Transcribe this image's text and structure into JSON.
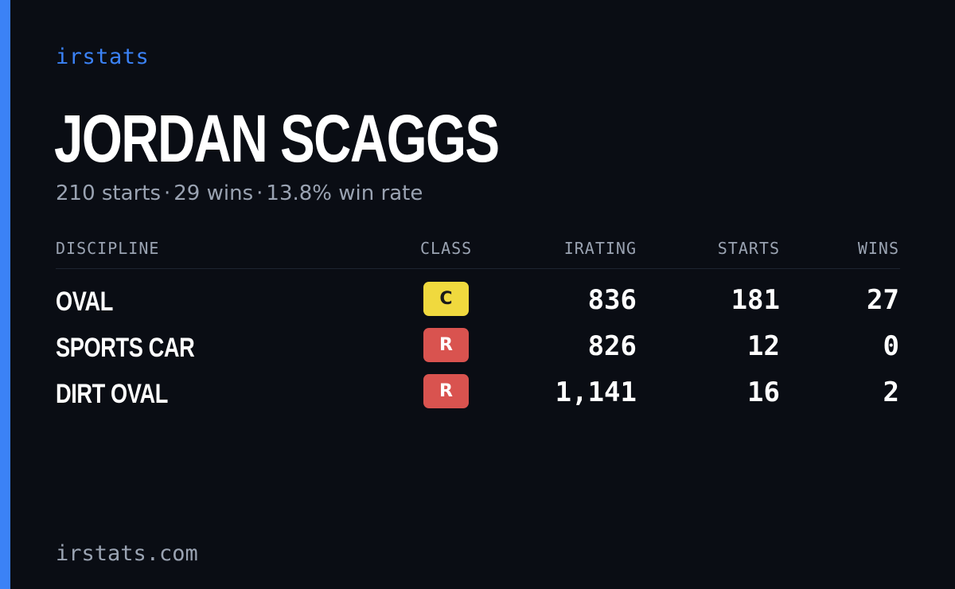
{
  "brand": "irstats",
  "player": {
    "name": "JORDAN SCAGGS",
    "starts": "210 starts",
    "wins": "29 wins",
    "win_rate": "13.8% win rate",
    "separator": "·"
  },
  "table": {
    "headers": {
      "discipline": "DISCIPLINE",
      "class": "CLASS",
      "irating": "IRATING",
      "starts": "STARTS",
      "wins": "WINS"
    },
    "rows": [
      {
        "discipline": "OVAL",
        "class": "C",
        "class_color": "#f0d93e",
        "class_text_color": "#1a1a1a",
        "irating": "836",
        "starts": "181",
        "wins": "27"
      },
      {
        "discipline": "SPORTS CAR",
        "class": "R",
        "class_color": "#d9534f",
        "class_text_color": "#ffffff",
        "irating": "826",
        "starts": "12",
        "wins": "0"
      },
      {
        "discipline": "DIRT OVAL",
        "class": "R",
        "class_color": "#d9534f",
        "class_text_color": "#ffffff",
        "irating": "1,141",
        "starts": "16",
        "wins": "2"
      }
    ]
  },
  "footer": {
    "domain": "irstats.com"
  },
  "colors": {
    "accent": "#3b82f6",
    "background": "#0a0d14",
    "muted_text": "#9aa3b2"
  }
}
